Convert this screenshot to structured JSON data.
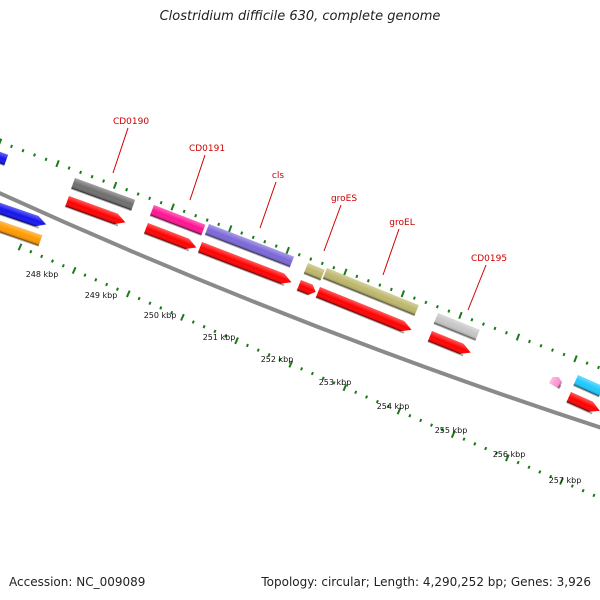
{
  "title": "Clostridium difficile 630, complete genome",
  "footer": {
    "accession": "Accession: NC_009089",
    "summary": "Topology: circular; Length: 4,290,252 bp; Genes: 3,926"
  },
  "tick_labels": [
    "248 kbp",
    "249 kbp",
    "250 kbp",
    "251 kbp",
    "252 kbp",
    "253 kbp",
    "254 kbp",
    "255 kbp",
    "256 kbp",
    "257 kbp"
  ],
  "gene_labels": [
    "CD0190",
    "CD0191",
    "cls",
    "groES",
    "groEL",
    "CD0195"
  ],
  "colors": {
    "backbone": "#8a8a8a",
    "tick": "#1a7a1a",
    "label": "#cc0000",
    "cds": "#ff0000",
    "gene_blue": "#1414ee",
    "gene_orange": "#ff9a00",
    "gene_darkgray": "#6e6e6e",
    "gene_magenta": "#ff1493",
    "gene_purple": "#7b68d8",
    "gene_khaki": "#bdb76b",
    "gene_lightgray": "#c6c6c6",
    "gene_cyan": "#1ec8ff",
    "gene_pink": "#ff9ad4"
  }
}
